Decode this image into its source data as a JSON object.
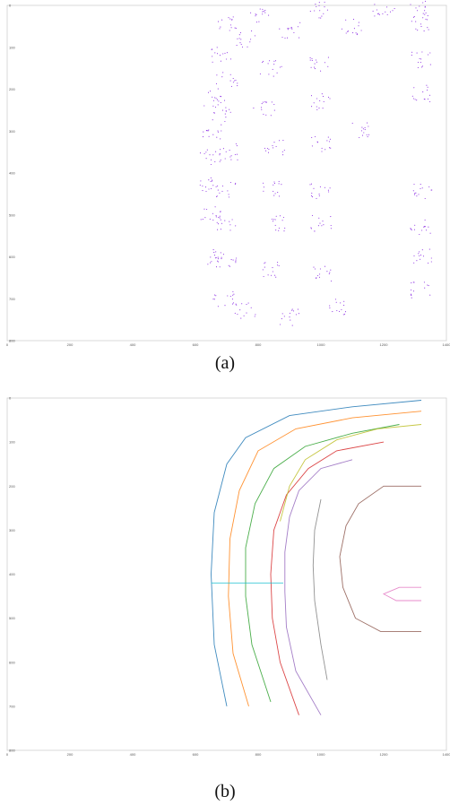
{
  "figure": {
    "caption_a": "(a)",
    "caption_b": "(b)"
  },
  "chart_data": [
    {
      "type": "scatter",
      "panel": "a",
      "title": "",
      "xlabel": "",
      "ylabel": "",
      "xlim": [
        0,
        1400
      ],
      "ylim": [
        800,
        0
      ],
      "x_ticks": [
        "0",
        "200",
        "400",
        "600",
        "800",
        "1000",
        "1200",
        "1400"
      ],
      "y_ticks": [
        "0",
        "100",
        "200",
        "300",
        "400",
        "500",
        "600",
        "700",
        "800"
      ],
      "grid": false,
      "point_color": "#8a2be2",
      "series": [
        {
          "description_points": [
            [
              700,
              40
            ],
            [
              800,
              25
            ],
            [
              1000,
              12
            ],
            [
              1200,
              8
            ],
            [
              1320,
              5
            ],
            [
              680,
              120
            ],
            [
              760,
              80
            ],
            [
              900,
              60
            ],
            [
              1100,
              50
            ],
            [
              1320,
              45
            ],
            [
              660,
              220
            ],
            [
              700,
              180
            ],
            [
              840,
              150
            ],
            [
              1000,
              140
            ],
            [
              1320,
              130
            ],
            [
              650,
              300
            ],
            [
              680,
              260
            ],
            [
              820,
              250
            ],
            [
              1000,
              230
            ],
            [
              1320,
              210
            ],
            [
              650,
              360
            ],
            [
              700,
              350
            ],
            [
              850,
              340
            ],
            [
              1000,
              330
            ],
            [
              1120,
              300
            ],
            [
              650,
              430
            ],
            [
              700,
              440
            ],
            [
              850,
              440
            ],
            [
              1000,
              445
            ],
            [
              1320,
              445
            ],
            [
              650,
              500
            ],
            [
              700,
              520
            ],
            [
              850,
              520
            ],
            [
              1000,
              520
            ],
            [
              1320,
              530
            ],
            [
              660,
              600
            ],
            [
              700,
              610
            ],
            [
              850,
              630
            ],
            [
              1000,
              640
            ],
            [
              1320,
              600
            ],
            [
              690,
              700
            ],
            [
              760,
              730
            ],
            [
              900,
              745
            ],
            [
              1050,
              720
            ],
            [
              1320,
              680
            ]
          ]
        }
      ]
    },
    {
      "type": "line",
      "panel": "b",
      "title": "",
      "xlabel": "",
      "ylabel": "",
      "xlim": [
        0,
        1400
      ],
      "ylim": [
        800,
        0
      ],
      "x_ticks": [
        "0",
        "200",
        "400",
        "600",
        "800",
        "1000",
        "1200",
        "1400"
      ],
      "y_ticks": [
        "0",
        "100",
        "200",
        "300",
        "400",
        "500",
        "600",
        "700",
        "800"
      ],
      "grid": false,
      "trajectory_colors": [
        "#1f77b4",
        "#ff7f0e",
        "#2ca02c",
        "#d62728",
        "#9467bd",
        "#8c564b",
        "#e377c2",
        "#7f7f7f",
        "#bcbd22",
        "#17becf"
      ],
      "series": [
        {
          "points": [
            [
              1320,
              5
            ],
            [
              1100,
              20
            ],
            [
              900,
              40
            ],
            [
              760,
              90
            ],
            [
              700,
              150
            ],
            [
              660,
              260
            ],
            [
              650,
              400
            ],
            [
              660,
              560
            ],
            [
              700,
              700
            ]
          ]
        },
        {
          "points": [
            [
              1320,
              30
            ],
            [
              1100,
              45
            ],
            [
              920,
              70
            ],
            [
              800,
              120
            ],
            [
              740,
              210
            ],
            [
              710,
              320
            ],
            [
              705,
              450
            ],
            [
              720,
              580
            ],
            [
              770,
              700
            ]
          ]
        },
        {
          "points": [
            [
              1250,
              60
            ],
            [
              1100,
              80
            ],
            [
              950,
              110
            ],
            [
              850,
              160
            ],
            [
              790,
              240
            ],
            [
              760,
              340
            ],
            [
              760,
              450
            ],
            [
              780,
              560
            ],
            [
              840,
              690
            ]
          ]
        },
        {
          "points": [
            [
              1200,
              100
            ],
            [
              1050,
              120
            ],
            [
              960,
              160
            ],
            [
              890,
              220
            ],
            [
              850,
              300
            ],
            [
              840,
              400
            ],
            [
              845,
              500
            ],
            [
              870,
              600
            ],
            [
              930,
              720
            ]
          ]
        },
        {
          "points": [
            [
              1100,
              140
            ],
            [
              1000,
              160
            ],
            [
              930,
              210
            ],
            [
              900,
              270
            ],
            [
              885,
              350
            ],
            [
              885,
              440
            ],
            [
              890,
              520
            ],
            [
              920,
              620
            ],
            [
              1000,
              720
            ]
          ]
        },
        {
          "points": [
            [
              1320,
              200
            ],
            [
              1200,
              200
            ],
            [
              1120,
              240
            ],
            [
              1080,
              290
            ],
            [
              1060,
              360
            ],
            [
              1070,
              430
            ],
            [
              1110,
              500
            ],
            [
              1190,
              530
            ],
            [
              1320,
              530
            ]
          ]
        },
        {
          "points": [
            [
              1320,
              430
            ],
            [
              1250,
              430
            ],
            [
              1200,
              445
            ],
            [
              1240,
              460
            ],
            [
              1320,
              460
            ]
          ]
        },
        {
          "points": [
            [
              1000,
              230
            ],
            [
              980,
              300
            ],
            [
              975,
              380
            ],
            [
              980,
              460
            ],
            [
              1000,
              560
            ],
            [
              1020,
              640
            ]
          ]
        },
        {
          "points": [
            [
              1320,
              60
            ],
            [
              1180,
              70
            ],
            [
              1050,
              95
            ],
            [
              950,
              140
            ],
            [
              900,
              200
            ],
            [
              870,
              280
            ]
          ]
        },
        {
          "points": [
            [
              650,
              420
            ],
            [
              700,
              420
            ],
            [
              800,
              420
            ],
            [
              880,
              420
            ]
          ]
        }
      ]
    }
  ]
}
